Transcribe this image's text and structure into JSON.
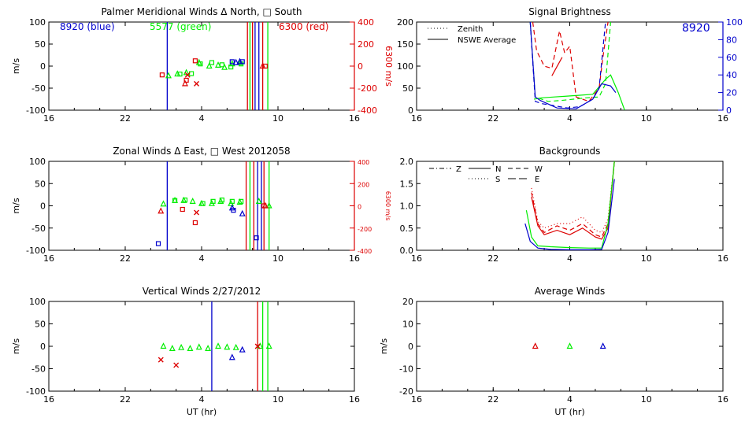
{
  "colors": {
    "blue": "#0000cc",
    "green": "#00ee00",
    "red": "#dd0000",
    "axis": "#000000"
  },
  "chart_data": [
    {
      "id": "meridional",
      "type": "scatter",
      "title": "Palmer Meridional Winds Δ North, □ South",
      "xlabel": "",
      "ylabel": "m/s",
      "ylim": [
        -100,
        100
      ],
      "yticks": [
        -100,
        -50,
        0,
        50,
        100
      ],
      "right_axis": {
        "label": "6300 m/s",
        "ylim": [
          -400,
          400
        ],
        "ticks": [
          -400,
          -200,
          0,
          200,
          400
        ],
        "tick_labels": [
          "-400",
          "-200",
          "0",
          "200",
          "400"
        ],
        "color": "red"
      },
      "xlim": [
        16,
        40
      ],
      "xticks": [
        16,
        22,
        28,
        34,
        40
      ],
      "xtick_labels": [
        "16",
        "22",
        "4",
        "10",
        "16"
      ],
      "annotations": [
        {
          "text": "8920 (blue)",
          "color": "blue"
        },
        {
          "text": "5577 (green)",
          "color": "green"
        },
        {
          "text": "6300 (red)",
          "color": "red"
        }
      ],
      "vlines": [
        {
          "x": 25.3,
          "color": "blue"
        },
        {
          "x": 31.6,
          "color": "red"
        },
        {
          "x": 31.8,
          "color": "green"
        },
        {
          "x": 32.0,
          "color": "red"
        },
        {
          "x": 32.2,
          "color": "blue"
        },
        {
          "x": 32.5,
          "color": "blue"
        },
        {
          "x": 32.8,
          "color": "red"
        },
        {
          "x": 33.2,
          "color": "green"
        }
      ],
      "series": [
        {
          "name": "5577 north",
          "color": "green",
          "marker": "triangle",
          "x": [
            25.4,
            26.1,
            26.8,
            27.8,
            28.6,
            29.3,
            29.8,
            30.4,
            31.0
          ],
          "y": [
            -22,
            -18,
            -15,
            8,
            0,
            2,
            -3,
            5,
            8
          ]
        },
        {
          "name": "5577 south",
          "color": "green",
          "marker": "square",
          "x": [
            26.3,
            27.2,
            27.9,
            28.8,
            29.6,
            30.3,
            31.1
          ],
          "y": [
            -18,
            -17,
            5,
            8,
            3,
            -2,
            5
          ]
        },
        {
          "name": "8920 north",
          "color": "blue",
          "marker": "triangle",
          "x": [
            30.7,
            31.0
          ],
          "y": [
            8,
            10
          ]
        },
        {
          "name": "8920 south",
          "color": "blue",
          "marker": "square",
          "x": [
            30.4,
            31.2
          ],
          "y": [
            10,
            10
          ]
        },
        {
          "name": "6300 north",
          "color": "red",
          "marker": "triangle",
          "x": [
            26.7,
            32.8
          ],
          "y": [
            -40,
            0
          ]
        },
        {
          "name": "6300 south",
          "color": "red",
          "marker": "square",
          "x": [
            24.9,
            26.8,
            27.5,
            33.0
          ],
          "y": [
            -20,
            -32,
            12,
            0
          ]
        },
        {
          "name": "6300 x",
          "color": "red",
          "marker": "x",
          "x": [
            26.9,
            27.6
          ],
          "y": [
            -20,
            -40
          ]
        }
      ]
    },
    {
      "id": "zonal",
      "type": "scatter",
      "title": "Zonal Winds Δ East, □ West 2012058",
      "xlabel": "",
      "ylabel": "m/s",
      "ylim": [
        -100,
        100
      ],
      "yticks": [
        -100,
        -50,
        0,
        50,
        100
      ],
      "right_axis": {
        "label": "6300 m/s",
        "ylim": [
          -400,
          400
        ],
        "ticks": [
          -400,
          -200,
          0,
          200,
          400
        ],
        "tick_labels": [
          "-400",
          "-200",
          "0",
          "200",
          "400"
        ],
        "color": "red"
      },
      "xlim": [
        16,
        40
      ],
      "xticks": [
        16,
        22,
        28,
        34,
        40
      ],
      "xtick_labels": [
        "16",
        "22",
        "4",
        "10",
        "16"
      ],
      "annotations": [],
      "vlines": [
        {
          "x": 25.3,
          "color": "blue"
        },
        {
          "x": 31.5,
          "color": "red"
        },
        {
          "x": 31.8,
          "color": "green"
        },
        {
          "x": 32.1,
          "color": "red"
        },
        {
          "x": 32.4,
          "color": "blue"
        },
        {
          "x": 32.7,
          "color": "blue"
        },
        {
          "x": 32.9,
          "color": "red"
        },
        {
          "x": 33.3,
          "color": "green"
        }
      ],
      "series": [
        {
          "name": "5577 east",
          "color": "green",
          "marker": "triangle",
          "x": [
            25.0,
            25.9,
            26.6,
            27.3,
            28.0,
            28.8,
            29.5,
            30.3,
            31.0,
            32.5,
            33.3
          ],
          "y": [
            4,
            12,
            12,
            10,
            5,
            5,
            10,
            5,
            8,
            10,
            0
          ]
        },
        {
          "name": "5577 west",
          "color": "green",
          "marker": "square",
          "x": [
            25.9,
            26.7,
            28.1,
            28.9,
            29.6,
            30.4,
            31.1
          ],
          "y": [
            12,
            13,
            5,
            10,
            13,
            10,
            10
          ]
        },
        {
          "name": "8920 east",
          "color": "blue",
          "marker": "triangle",
          "x": [
            30.4,
            31.2
          ],
          "y": [
            -5,
            -18
          ]
        },
        {
          "name": "8920 west",
          "color": "blue",
          "marker": "square",
          "x": [
            24.6,
            30.5,
            32.3
          ],
          "y": [
            -85,
            -10,
            -72
          ]
        },
        {
          "name": "6300 east",
          "color": "red",
          "marker": "triangle",
          "x": [
            24.8,
            33.0
          ],
          "y": [
            -12,
            0
          ]
        },
        {
          "name": "6300 west",
          "color": "red",
          "marker": "square",
          "x": [
            26.5,
            27.5,
            32.9
          ],
          "y": [
            -8,
            -38,
            0
          ]
        },
        {
          "name": "6300 x",
          "color": "red",
          "marker": "x",
          "x": [
            27.6
          ],
          "y": [
            -15
          ]
        }
      ]
    },
    {
      "id": "vertical",
      "type": "scatter",
      "title": "Vertical Winds 2/27/2012",
      "xlabel": "UT (hr)",
      "ylabel": "m/s",
      "ylim": [
        -100,
        100
      ],
      "yticks": [
        -100,
        -50,
        0,
        50,
        100
      ],
      "xlim": [
        16,
        40
      ],
      "xticks": [
        16,
        22,
        28,
        34,
        40
      ],
      "xtick_labels": [
        "16",
        "22",
        "4",
        "10",
        "16"
      ],
      "annotations": [],
      "vlines": [
        {
          "x": 28.8,
          "color": "blue"
        },
        {
          "x": 32.4,
          "color": "red"
        },
        {
          "x": 32.8,
          "color": "green"
        },
        {
          "x": 33.2,
          "color": "green"
        }
      ],
      "series": [
        {
          "name": "5577",
          "color": "green",
          "marker": "triangle",
          "x": [
            25.0,
            25.7,
            26.4,
            27.1,
            27.8,
            28.5,
            29.3,
            30.0,
            30.7,
            32.6,
            33.3
          ],
          "y": [
            0,
            -5,
            -3,
            -5,
            -2,
            -5,
            0,
            -2,
            -3,
            0,
            0
          ]
        },
        {
          "name": "8920",
          "color": "blue",
          "marker": "triangle",
          "x": [
            30.4,
            31.2
          ],
          "y": [
            -25,
            -8
          ]
        },
        {
          "name": "6300",
          "color": "red",
          "marker": "x",
          "x": [
            24.8,
            26.0,
            32.4
          ],
          "y": [
            -30,
            -42,
            0
          ]
        }
      ]
    },
    {
      "id": "brightness",
      "type": "line",
      "title": "Signal Brightness",
      "xlabel": "",
      "ylabel": "",
      "ylim": [
        0,
        200
      ],
      "yticks": [
        0,
        50,
        100,
        150,
        200
      ],
      "right_axis": {
        "label": "",
        "ylim": [
          0,
          100
        ],
        "ticks": [
          0,
          20,
          40,
          60,
          80,
          100
        ],
        "tick_labels": [
          "0",
          "20",
          "40",
          "60",
          "80",
          "100"
        ],
        "color": "blue"
      },
      "xlim": [
        16,
        40
      ],
      "xticks": [
        16,
        22,
        28,
        34,
        40
      ],
      "xtick_labels": [
        "16",
        "22",
        "4",
        "10",
        "16"
      ],
      "annotations": [
        {
          "text": "8920",
          "color": "blue"
        }
      ],
      "legend": [
        {
          "label": "Zenith",
          "style": "dotted"
        },
        {
          "label": "NSWE Average",
          "style": "solid"
        }
      ],
      "series": [
        {
          "name": "green avg",
          "color": "green",
          "style": "solid",
          "x": [
            25.2,
            25.8,
            26.8,
            27.8,
            28.8,
            29.8,
            30.8,
            31.2,
            31.8,
            32.3
          ],
          "y": [
            25,
            28,
            30,
            32,
            34,
            36,
            70,
            80,
            40,
            0
          ]
        },
        {
          "name": "green zenith",
          "color": "green",
          "style": "dashed",
          "x": [
            24.9,
            25.3,
            26.3,
            27.3,
            28.3,
            29.3,
            30.3,
            30.8,
            31.2
          ],
          "y": [
            200,
            30,
            20,
            22,
            25,
            28,
            30,
            60,
            200
          ]
        },
        {
          "name": "red avg",
          "color": "red",
          "style": "solid",
          "x": [
            26.6,
            27.4
          ],
          "y": [
            78,
            120
          ]
        },
        {
          "name": "red zenith",
          "color": "red",
          "style": "dashed",
          "x": [
            25.1,
            25.4,
            26.0,
            26.6,
            27.2,
            27.6,
            28.0,
            28.5,
            29.5,
            30.3,
            30.6,
            31.0
          ],
          "y": [
            200,
            135,
            100,
            95,
            180,
            130,
            145,
            30,
            20,
            50,
            120,
            200
          ]
        },
        {
          "name": "blue avg",
          "color": "blue",
          "style": "solid",
          "x": [
            24.9,
            25.3,
            25.7,
            27.0,
            28.5,
            29.8,
            30.5,
            31.2,
            31.6
          ],
          "y": [
            200,
            30,
            22,
            5,
            3,
            25,
            60,
            55,
            40
          ]
        },
        {
          "name": "blue zenith",
          "color": "blue",
          "style": "dashed",
          "x": [
            24.9,
            25.3,
            25.8,
            26.8,
            27.8,
            28.8,
            29.8,
            30.3,
            30.8
          ],
          "y": [
            200,
            20,
            15,
            10,
            5,
            8,
            25,
            50,
            200
          ]
        }
      ]
    },
    {
      "id": "backgrounds",
      "type": "line",
      "title": "Backgrounds",
      "xlabel": "",
      "ylabel": "",
      "ylim": [
        0,
        2
      ],
      "yticks": [
        0,
        0.5,
        1,
        1.5,
        2
      ],
      "ytick_labels": [
        "0.0",
        "0.5",
        "1.0",
        "1.5",
        "2.0"
      ],
      "xlim": [
        16,
        40
      ],
      "xticks": [
        16,
        22,
        28,
        34,
        40
      ],
      "xtick_labels": [
        "16",
        "22",
        "4",
        "10",
        "16"
      ],
      "annotations": [],
      "legend": [
        {
          "label": "Z",
          "style": "dashdot"
        },
        {
          "label": "N",
          "style": "solid"
        },
        {
          "label": "W",
          "style": "dashed"
        },
        {
          "label": "S",
          "style": "dotted"
        },
        {
          "label": "E",
          "style": "longdash"
        }
      ],
      "series": [
        {
          "name": "red Z",
          "color": "red",
          "style": "solid",
          "x": [
            25.0,
            25.5,
            26.0,
            27.0,
            28.0,
            29.0,
            30.0,
            30.5,
            31.0,
            31.5
          ],
          "y": [
            1.2,
            0.55,
            0.35,
            0.45,
            0.35,
            0.5,
            0.3,
            0.25,
            0.5,
            2.0
          ]
        },
        {
          "name": "red N",
          "color": "red",
          "style": "dashed",
          "x": [
            25.0,
            25.5,
            26.0,
            27.0,
            28.0,
            29.0,
            30.0,
            30.5,
            31.0,
            31.5
          ],
          "y": [
            1.3,
            0.6,
            0.4,
            0.55,
            0.45,
            0.6,
            0.35,
            0.3,
            0.6,
            2.0
          ]
        },
        {
          "name": "red S",
          "color": "red",
          "style": "dotted",
          "x": [
            25.0,
            25.5,
            26.0,
            27.0,
            28.0,
            29.0,
            30.0,
            30.5,
            31.0,
            31.5
          ],
          "y": [
            1.4,
            0.65,
            0.5,
            0.6,
            0.6,
            0.75,
            0.45,
            0.4,
            0.7,
            2.0
          ]
        },
        {
          "name": "green",
          "color": "green",
          "style": "solid",
          "x": [
            24.6,
            25.0,
            25.5,
            26.5,
            28.0,
            29.5,
            30.5,
            31.0,
            31.5
          ],
          "y": [
            0.9,
            0.3,
            0.1,
            0.08,
            0.06,
            0.05,
            0.05,
            0.6,
            2.0
          ]
        },
        {
          "name": "blue",
          "color": "blue",
          "style": "solid",
          "x": [
            24.5,
            24.9,
            25.5,
            26.5,
            28.0,
            29.5,
            30.5,
            31.0,
            31.5
          ],
          "y": [
            0.6,
            0.2,
            0.05,
            0.02,
            0.01,
            0.01,
            0.02,
            0.4,
            1.6
          ]
        }
      ]
    },
    {
      "id": "average",
      "type": "scatter",
      "title": "Average Winds",
      "xlabel": "UT (hr)",
      "ylabel": "m/s",
      "ylim": [
        -20,
        20
      ],
      "yticks": [
        -20,
        -10,
        0,
        10,
        20
      ],
      "xlim": [
        16,
        40
      ],
      "xticks": [
        16,
        22,
        28,
        34,
        40
      ],
      "xtick_labels": [
        "16",
        "22",
        "4",
        "10",
        "16"
      ],
      "annotations": [],
      "series": [
        {
          "name": "6300",
          "color": "red",
          "marker": "triangle",
          "x": [
            25.3
          ],
          "y": [
            0
          ]
        },
        {
          "name": "5577",
          "color": "green",
          "marker": "triangle",
          "x": [
            28.0
          ],
          "y": [
            0
          ]
        },
        {
          "name": "8920",
          "color": "blue",
          "marker": "triangle",
          "x": [
            30.6
          ],
          "y": [
            0
          ]
        }
      ]
    }
  ]
}
